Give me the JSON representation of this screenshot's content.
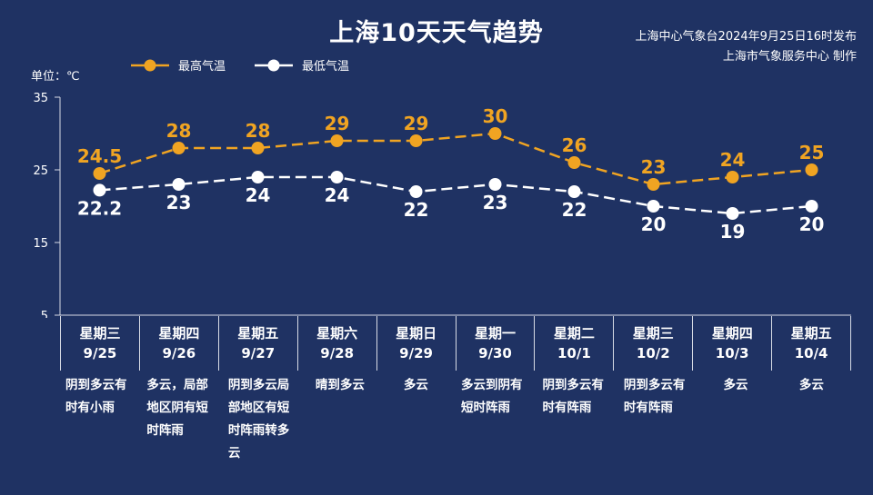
{
  "header": {
    "title": "上海10天天气趋势",
    "source_line1": "上海中心气象台2024年9月25日16时发布",
    "source_line2": "上海市气象服务中心 制作",
    "unit": "单位：℃"
  },
  "colors": {
    "background": "#1f3263",
    "high": "#f0a422",
    "low": "#ffffff"
  },
  "chart_data": {
    "type": "line",
    "title": "上海10天天气趋势",
    "ylabel": "单位：℃",
    "ylim": [
      5,
      35
    ],
    "yticks": [
      35,
      25,
      15,
      5
    ],
    "legend_position": "top-left",
    "grid": false,
    "categories": [
      "9/25",
      "9/26",
      "9/27",
      "9/28",
      "9/29",
      "9/30",
      "10/1",
      "10/2",
      "10/3",
      "10/4"
    ],
    "weekdays": [
      "星期三",
      "星期四",
      "星期五",
      "星期六",
      "星期日",
      "星期一",
      "星期二",
      "星期三",
      "星期四",
      "星期五"
    ],
    "weather": [
      "阴到多云有时有小雨",
      "多云，局部地区阴有短时阵雨",
      "阴到多云局部地区有短时阵雨转多云",
      "晴到多云",
      "多云",
      "多云到阴有短时阵雨",
      "阴到多云有时有阵雨",
      "阴到多云有时有阵雨",
      "多云",
      "多云"
    ],
    "series": [
      {
        "name": "最高气温",
        "values": [
          24.5,
          28,
          28,
          29,
          29,
          30,
          26,
          23,
          24,
          25
        ],
        "labels": [
          "24.5",
          "28",
          "28",
          "29",
          "29",
          "30",
          "26",
          "23",
          "24",
          "25"
        ]
      },
      {
        "name": "最低气温",
        "values": [
          22.2,
          23,
          24,
          24,
          22,
          23,
          22,
          20,
          19,
          20
        ],
        "labels": [
          "22.2",
          "23",
          "24",
          "24",
          "22",
          "23",
          "22",
          "20",
          "19",
          "20"
        ]
      }
    ]
  }
}
